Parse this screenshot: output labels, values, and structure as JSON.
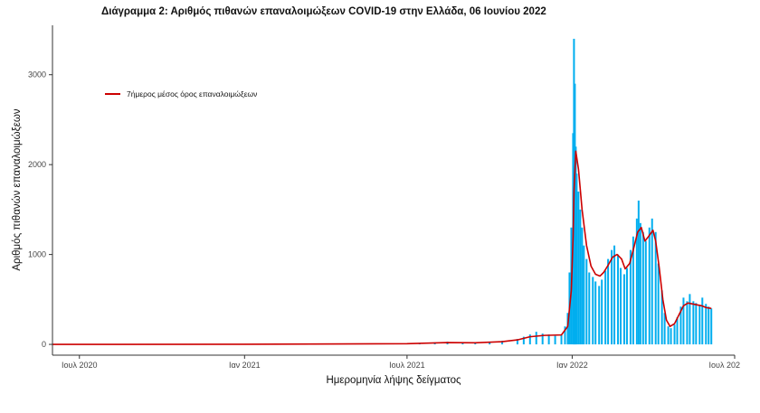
{
  "chart_data": {
    "type": "bar",
    "title": "Διάγραμμα 2: Αριθμός πιθανών επαναλοιμώξεων COVID-19 στην Ελλάδα, 06 Ιουνίου 2022",
    "xlabel": "Ημερομηνία λήψης δείγματος",
    "ylabel": "Αριθμός πιθανών επαναλοιμώξεων",
    "x_range": [
      "2020-06-01",
      "2022-07-01"
    ],
    "ylim": [
      -120,
      3550
    ],
    "x_ticks": [
      {
        "date": "2020-07-01",
        "label": "Ιουλ 2020"
      },
      {
        "date": "2021-01-01",
        "label": "Ιαν 2021"
      },
      {
        "date": "2021-07-01",
        "label": "Ιουλ 2021"
      },
      {
        "date": "2022-01-01",
        "label": "Ιαν 2022"
      },
      {
        "date": "2022-07-01",
        "label": "Ιουλ 202"
      }
    ],
    "y_ticks": [
      0,
      1000,
      2000,
      3000
    ],
    "grid": false,
    "legend_position": "top-left",
    "series": [
      {
        "kind": "bar",
        "color": "#00AEEF",
        "points": [
          [
            "2021-07-15",
            12
          ],
          [
            "2021-08-01",
            22
          ],
          [
            "2021-08-15",
            30
          ],
          [
            "2021-09-01",
            25
          ],
          [
            "2021-09-15",
            18
          ],
          [
            "2021-10-01",
            25
          ],
          [
            "2021-10-15",
            40
          ],
          [
            "2021-11-01",
            60
          ],
          [
            "2021-11-08",
            85
          ],
          [
            "2021-11-15",
            110
          ],
          [
            "2021-11-22",
            140
          ],
          [
            "2021-11-29",
            120
          ],
          [
            "2021-12-06",
            110
          ],
          [
            "2021-12-13",
            95
          ],
          [
            "2021-12-20",
            110
          ],
          [
            "2021-12-24",
            200
          ],
          [
            "2021-12-27",
            350
          ],
          [
            "2021-12-29",
            800
          ],
          [
            "2021-12-31",
            1300
          ],
          [
            "2022-01-02",
            2350
          ],
          [
            "2022-01-03",
            3400
          ],
          [
            "2022-01-04",
            2900
          ],
          [
            "2022-01-05",
            2200
          ],
          [
            "2022-01-06",
            1900
          ],
          [
            "2022-01-08",
            1700
          ],
          [
            "2022-01-10",
            1500
          ],
          [
            "2022-01-12",
            1300
          ],
          [
            "2022-01-14",
            1100
          ],
          [
            "2022-01-17",
            950
          ],
          [
            "2022-01-20",
            800
          ],
          [
            "2022-01-24",
            750
          ],
          [
            "2022-01-27",
            700
          ],
          [
            "2022-01-31",
            650
          ],
          [
            "2022-02-03",
            720
          ],
          [
            "2022-02-07",
            820
          ],
          [
            "2022-02-10",
            950
          ],
          [
            "2022-02-14",
            1050
          ],
          [
            "2022-02-17",
            1100
          ],
          [
            "2022-02-21",
            1000
          ],
          [
            "2022-02-24",
            850
          ],
          [
            "2022-02-28",
            780
          ],
          [
            "2022-03-03",
            850
          ],
          [
            "2022-03-07",
            1050
          ],
          [
            "2022-03-10",
            1200
          ],
          [
            "2022-03-14",
            1400
          ],
          [
            "2022-03-16",
            1600
          ],
          [
            "2022-03-18",
            1350
          ],
          [
            "2022-03-21",
            1250
          ],
          [
            "2022-03-24",
            1150
          ],
          [
            "2022-03-28",
            1300
          ],
          [
            "2022-03-31",
            1400
          ],
          [
            "2022-04-04",
            1250
          ],
          [
            "2022-04-07",
            900
          ],
          [
            "2022-04-11",
            600
          ],
          [
            "2022-04-14",
            350
          ],
          [
            "2022-04-18",
            200
          ],
          [
            "2022-04-21",
            180
          ],
          [
            "2022-04-25",
            220
          ],
          [
            "2022-04-28",
            300
          ],
          [
            "2022-05-02",
            420
          ],
          [
            "2022-05-05",
            520
          ],
          [
            "2022-05-09",
            480
          ],
          [
            "2022-05-12",
            560
          ],
          [
            "2022-05-16",
            480
          ],
          [
            "2022-05-19",
            460
          ],
          [
            "2022-05-23",
            430
          ],
          [
            "2022-05-26",
            520
          ],
          [
            "2022-05-30",
            450
          ],
          [
            "2022-06-02",
            420
          ],
          [
            "2022-06-05",
            400
          ]
        ]
      },
      {
        "kind": "line",
        "name": "7ήμερος μέσος όρος επαναλοιμώξεων",
        "color": "#CC0000",
        "points": [
          [
            "2020-06-01",
            0
          ],
          [
            "2021-01-01",
            1
          ],
          [
            "2021-07-01",
            8
          ],
          [
            "2021-08-15",
            20
          ],
          [
            "2021-09-15",
            18
          ],
          [
            "2021-10-15",
            30
          ],
          [
            "2021-11-01",
            50
          ],
          [
            "2021-11-15",
            85
          ],
          [
            "2021-12-01",
            100
          ],
          [
            "2021-12-20",
            105
          ],
          [
            "2021-12-27",
            200
          ],
          [
            "2021-12-31",
            600
          ],
          [
            "2022-01-02",
            1200
          ],
          [
            "2022-01-03",
            1700
          ],
          [
            "2022-01-05",
            2150
          ],
          [
            "2022-01-08",
            1950
          ],
          [
            "2022-01-12",
            1500
          ],
          [
            "2022-01-17",
            1100
          ],
          [
            "2022-01-22",
            870
          ],
          [
            "2022-01-27",
            780
          ],
          [
            "2022-02-01",
            760
          ],
          [
            "2022-02-05",
            800
          ],
          [
            "2022-02-10",
            880
          ],
          [
            "2022-02-15",
            970
          ],
          [
            "2022-02-20",
            1000
          ],
          [
            "2022-02-25",
            950
          ],
          [
            "2022-03-01",
            840
          ],
          [
            "2022-03-06",
            900
          ],
          [
            "2022-03-10",
            1050
          ],
          [
            "2022-03-15",
            1250
          ],
          [
            "2022-03-19",
            1300
          ],
          [
            "2022-03-23",
            1150
          ],
          [
            "2022-03-27",
            1200
          ],
          [
            "2022-04-01",
            1270
          ],
          [
            "2022-04-04",
            1150
          ],
          [
            "2022-04-08",
            850
          ],
          [
            "2022-04-12",
            500
          ],
          [
            "2022-04-16",
            270
          ],
          [
            "2022-04-20",
            200
          ],
          [
            "2022-04-25",
            230
          ],
          [
            "2022-04-30",
            330
          ],
          [
            "2022-05-05",
            430
          ],
          [
            "2022-05-10",
            460
          ],
          [
            "2022-05-15",
            450
          ],
          [
            "2022-05-20",
            440
          ],
          [
            "2022-05-25",
            430
          ],
          [
            "2022-05-30",
            410
          ],
          [
            "2022-06-05",
            400
          ]
        ]
      }
    ]
  }
}
